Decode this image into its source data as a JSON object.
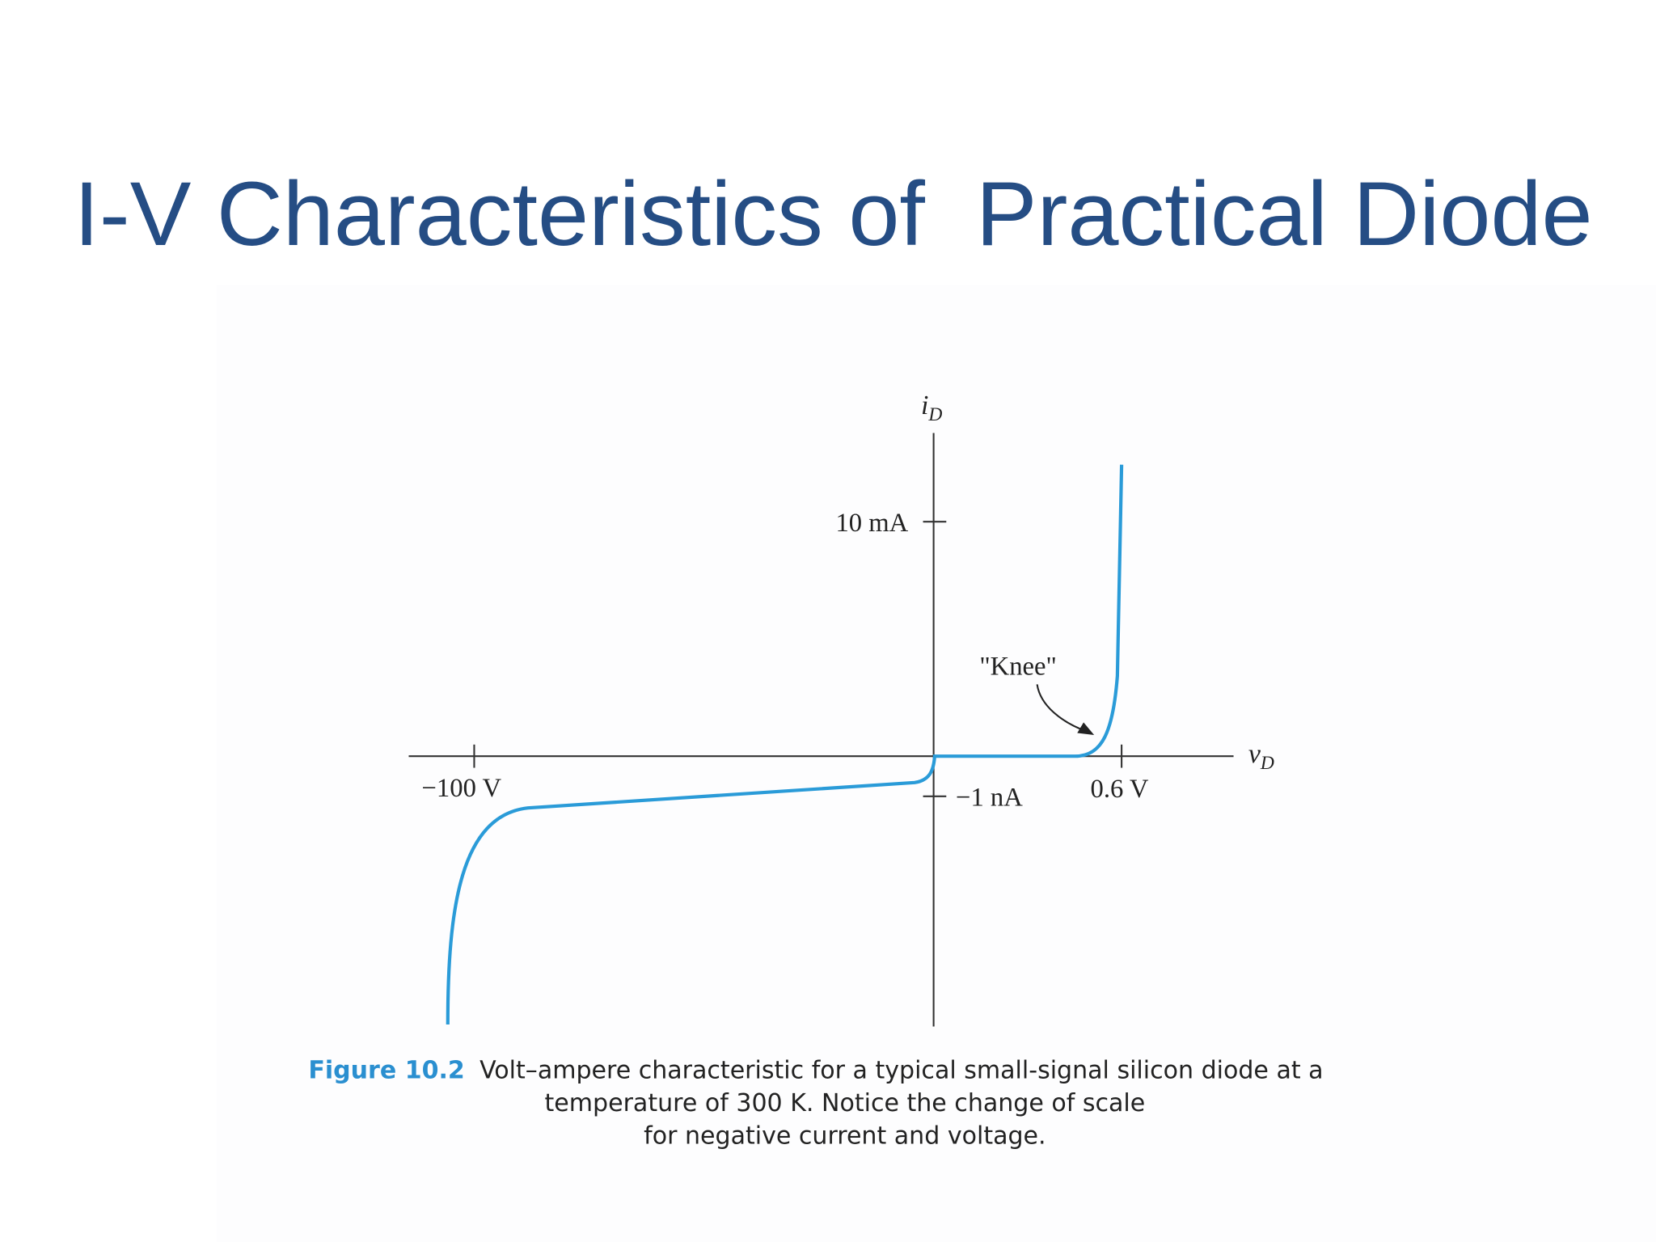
{
  "header": {
    "title": "I-V Characteristics of  Practical Diode"
  },
  "figure": {
    "y_axis_label": {
      "symbol": "i",
      "subscript": "D"
    },
    "x_axis_label": {
      "symbol": "v",
      "subscript": "D"
    },
    "y_ticks": [
      "10 mA",
      "−1 nA"
    ],
    "x_ticks": [
      "−100 V",
      "0.6 V"
    ],
    "annotation": "\"Knee\"",
    "caption": {
      "label": "Figure 10.2",
      "lines": [
        "Volt–ampere characteristic for a typical small-signal silicon diode at a",
        "temperature of 300 K. Notice the change of scale",
        "for negative current and voltage."
      ]
    }
  }
}
